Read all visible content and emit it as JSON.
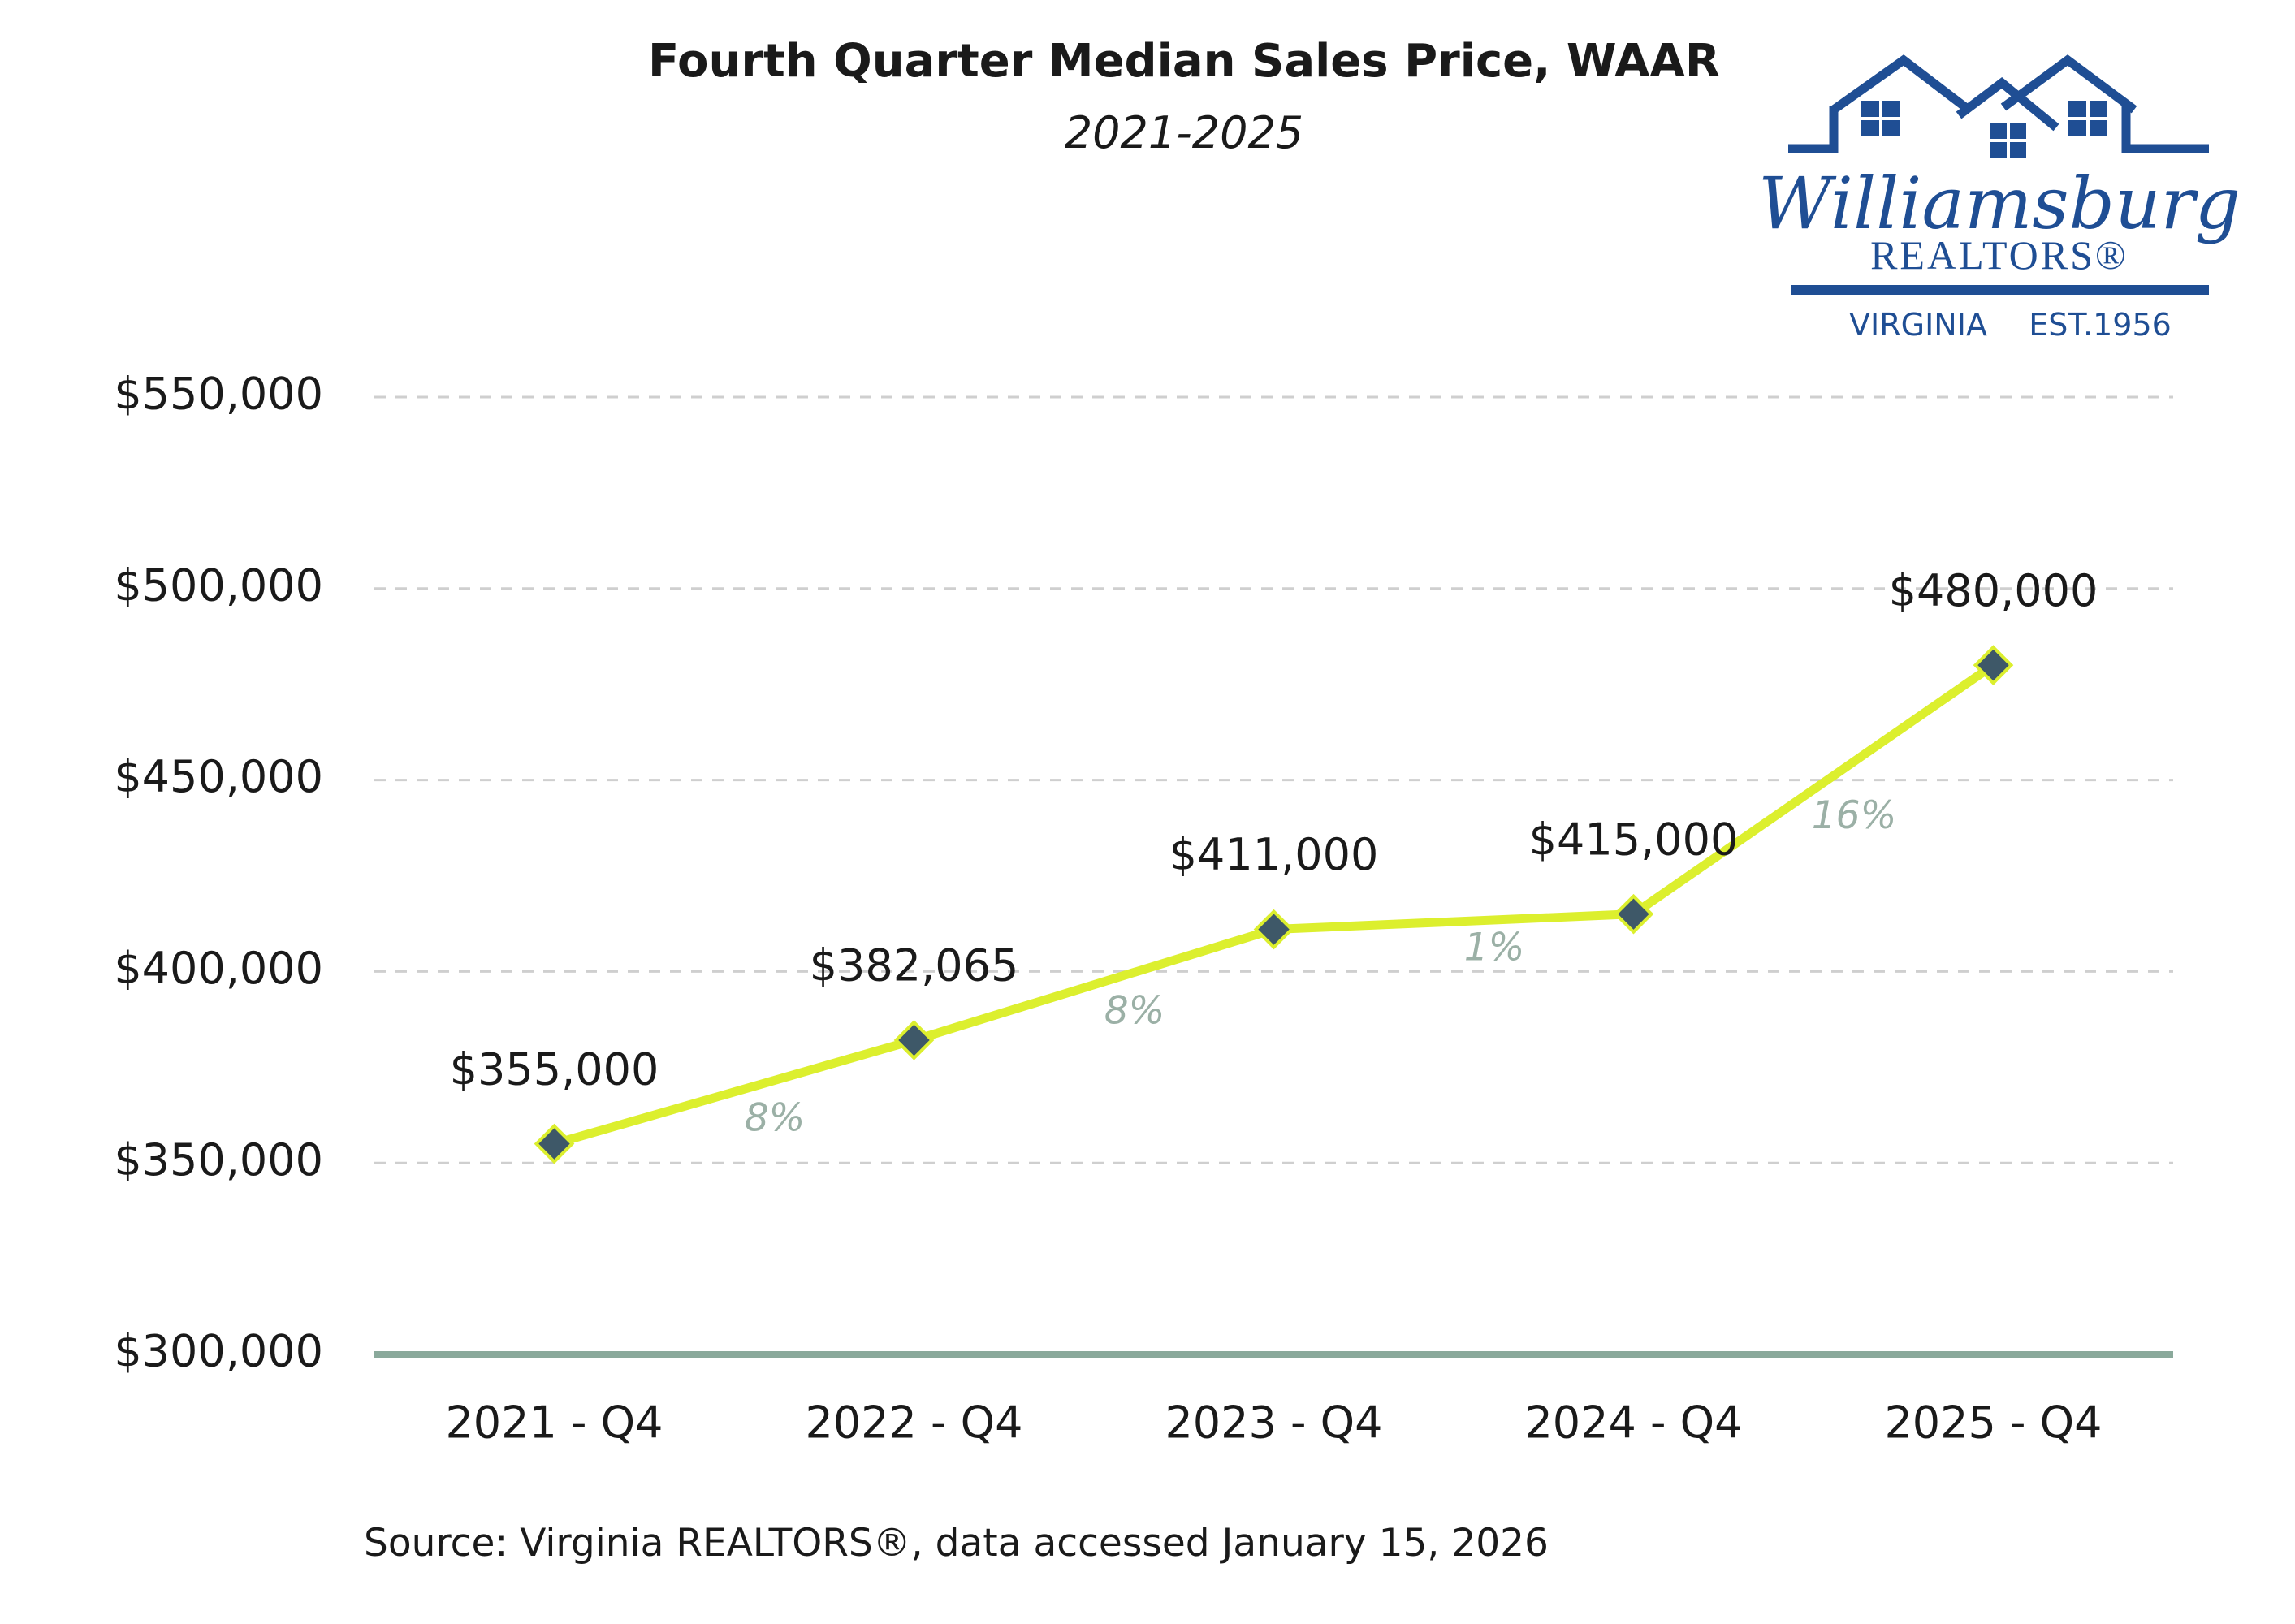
{
  "chart_data": {
    "type": "line",
    "title": "Fourth Quarter Median Sales Price, WAAR",
    "subtitle": "2021-2025",
    "xlabel": "",
    "ylabel": "",
    "categories": [
      "2021 - Q4",
      "2022 - Q4",
      "2023 - Q4",
      "2024 - Q4",
      "2025 - Q4"
    ],
    "values": [
      355000,
      382065,
      411000,
      415000,
      480000
    ],
    "data_labels": [
      "$355,000",
      "$382,065",
      "$411,000",
      "$415,000",
      "$480,000"
    ],
    "change_labels": [
      "8%",
      "8%",
      "1%",
      "16%"
    ],
    "ylim": [
      300000,
      550000
    ],
    "yticks": [
      300000,
      350000,
      400000,
      450000,
      500000,
      550000
    ],
    "ytick_labels": [
      "$300,000",
      "$350,000",
      "$400,000",
      "$450,000",
      "$500,000",
      "$550,000"
    ],
    "grid": true,
    "legend": "none",
    "colors": {
      "line": "#dcef2e",
      "marker": "#3e5868",
      "axis": "#8aa99b",
      "grid": "#cfcfcf",
      "change_label": "#9bb0a6",
      "text": "#1a1a1a"
    },
    "source": "Source: Virginia REALTORS®, data accessed January 15, 2026"
  },
  "logo": {
    "script_text": "Williamsburg",
    "name_text": "REALTORS®",
    "state_text": "VIRGINIA",
    "est_text": "EST.1956",
    "color": "#1f4e94"
  }
}
